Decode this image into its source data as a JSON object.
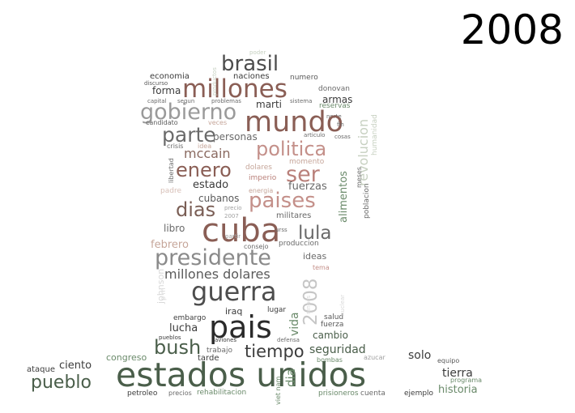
{
  "year_label": "2008",
  "colors": {
    "dark_green": "#4a5e4a",
    "rose": "#b9807a",
    "brown": "#8a5e55",
    "gray": "#8a8a8a",
    "dark": "#2a2a2a"
  },
  "words": [
    {
      "text": "poder",
      "c": "#c6d0c0"
    },
    {
      "text": "naciones",
      "c": "#3c3c3c"
    },
    {
      "text": "economia",
      "c": "#3c3c3c"
    },
    {
      "text": "numero",
      "c": "#5a5a5a"
    },
    {
      "text": "discurso",
      "c": "#5a5a5a"
    },
    {
      "text": "donovan",
      "c": "#6a6a6a"
    },
    {
      "text": "brasil",
      "c": "#4d4d4d"
    },
    {
      "text": "millones",
      "c": "#8a5e55"
    },
    {
      "text": "forma",
      "c": "#3c3c3c"
    },
    {
      "text": "capital",
      "c": "#6a6a6a"
    },
    {
      "text": "segun",
      "c": "#6a6a6a"
    },
    {
      "text": "problemas",
      "c": "#6a6a6a"
    },
    {
      "text": "sistema",
      "c": "#6a6a6a"
    },
    {
      "text": "reservas",
      "c": "#6a8a6a"
    },
    {
      "text": "armas",
      "c": "#3c3c3c"
    },
    {
      "text": "norte",
      "c": "#6a6a6a"
    },
    {
      "text": "gobierno",
      "c": "#9a9a9a"
    },
    {
      "text": "mundo",
      "c": "#8a5e55"
    },
    {
      "text": "marti",
      "c": "#3c3c3c"
    },
    {
      "text": "candidato",
      "c": "#5a5a5a"
    },
    {
      "text": "veces",
      "c": "#c6a69a"
    },
    {
      "text": "fin",
      "c": "#6a6a6a"
    },
    {
      "text": "parte",
      "c": "#6a6a6a"
    },
    {
      "text": "personas",
      "c": "#6a6a6a"
    },
    {
      "text": "articulo",
      "c": "#6a6a6a"
    },
    {
      "text": "cosas",
      "c": "#6a6a6a"
    },
    {
      "text": "crisis",
      "c": "#6a6a6a"
    },
    {
      "text": "idea",
      "c": "#c6a69a"
    },
    {
      "text": "politica",
      "c": "#c4908a"
    },
    {
      "text": "mccain",
      "c": "#8a6a60"
    },
    {
      "text": "momento",
      "c": "#c6a69a"
    },
    {
      "text": "dolares",
      "c": "#c6a69a"
    },
    {
      "text": "enero",
      "c": "#8a5e55"
    },
    {
      "text": "ser",
      "c": "#b9807a"
    },
    {
      "text": "imperio",
      "c": "#b9807a"
    },
    {
      "text": "estado",
      "c": "#3c3c3c"
    },
    {
      "text": "fuerzas",
      "c": "#6a6a6a"
    },
    {
      "text": "padre",
      "c": "#d8c0b8"
    },
    {
      "text": "energia",
      "c": "#c6a69a"
    },
    {
      "text": "cubanos",
      "c": "#5a5a5a"
    },
    {
      "text": "paises",
      "c": "#c4908a"
    },
    {
      "text": "dias",
      "c": "#7a5e55"
    },
    {
      "text": "precio",
      "c": "#a0a0a0"
    },
    {
      "text": "2007",
      "c": "#a0a0a0"
    },
    {
      "text": "militares",
      "c": "#6a6a6a"
    },
    {
      "text": "cuba",
      "c": "#8a5e55"
    },
    {
      "text": "lula",
      "c": "#6a6a6a"
    },
    {
      "text": "libro",
      "c": "#6a6a6a"
    },
    {
      "text": "partir",
      "c": "#a0a0a0"
    },
    {
      "text": "urss",
      "c": "#6a6a6a"
    },
    {
      "text": "febrero",
      "c": "#c6a69a"
    },
    {
      "text": "consejo",
      "c": "#6a6a6a"
    },
    {
      "text": "produccion",
      "c": "#6a6a6a"
    },
    {
      "text": "presidente",
      "c": "#8a8a8a"
    },
    {
      "text": "ideas",
      "c": "#6a6a6a"
    },
    {
      "text": "tema",
      "c": "#c4908a"
    },
    {
      "text": "millones dolares",
      "c": "#5a5a5a"
    },
    {
      "text": "guerra",
      "c": "#4d4d4d"
    },
    {
      "text": "embargo",
      "c": "#3c3c3c"
    },
    {
      "text": "iraq",
      "c": "#3c3c3c"
    },
    {
      "text": "lugar",
      "c": "#3c3c3c"
    },
    {
      "text": "salud",
      "c": "#5a5a5a"
    },
    {
      "text": "pais",
      "c": "#2a2a2a"
    },
    {
      "text": "fuerza",
      "c": "#5a5a5a"
    },
    {
      "text": "lucha",
      "c": "#3c3c3c"
    },
    {
      "text": "pueblos",
      "c": "#3c3c3c"
    },
    {
      "text": "aviones",
      "c": "#3c3c3c"
    },
    {
      "text": "cambio",
      "c": "#4a5e4a"
    },
    {
      "text": "bush",
      "c": "#4a5e4a"
    },
    {
      "text": "defensa",
      "c": "#6a6a6a"
    },
    {
      "text": "tiempo",
      "c": "#3c3c3c"
    },
    {
      "text": "seguridad",
      "c": "#4a5e4a"
    },
    {
      "text": "trabajo",
      "c": "#6a6a6a"
    },
    {
      "text": "congreso",
      "c": "#6a8a6a"
    },
    {
      "text": "ciento",
      "c": "#3c3c3c"
    },
    {
      "text": "tarde",
      "c": "#3c3c3c"
    },
    {
      "text": "bombas",
      "c": "#6a8a6a"
    },
    {
      "text": "azucar",
      "c": "#a0a0a0"
    },
    {
      "text": "solo",
      "c": "#3c3c3c"
    },
    {
      "text": "equipo",
      "c": "#5a5a5a"
    },
    {
      "text": "ataque",
      "c": "#3c3c3c"
    },
    {
      "text": "estados unidos",
      "c": "#4a5e4a"
    },
    {
      "text": "tierra",
      "c": "#3c3c3c"
    },
    {
      "text": "pueblo",
      "c": "#4a5e4a"
    },
    {
      "text": "programa",
      "c": "#6a8a6a"
    },
    {
      "text": "historia",
      "c": "#6a8a6a"
    },
    {
      "text": "petroleo",
      "c": "#3c3c3c"
    },
    {
      "text": "precios",
      "c": "#6a6a6a"
    },
    {
      "text": "rehabilitacion",
      "c": "#6a8a6a"
    },
    {
      "text": "prisioneros",
      "c": "#6a8a6a"
    },
    {
      "text": "cuenta",
      "c": "#6a6a6a"
    },
    {
      "text": "ejemplo",
      "c": "#3c3c3c"
    },
    {
      "text": "productos",
      "c": "#c6d0c0"
    },
    {
      "text": "revolucion",
      "c": "#c6d0c0"
    },
    {
      "text": "humanidad",
      "c": "#c6d0c0"
    },
    {
      "text": "meses",
      "c": "#6a6a6a"
    },
    {
      "text": "poblacion",
      "c": "#6a6a6a"
    },
    {
      "text": "alimentos",
      "c": "#6a8a6a"
    },
    {
      "text": "libertad",
      "c": "#6a6a6a"
    },
    {
      "text": "2008",
      "c": "#c6c6c6"
    },
    {
      "text": "johnson",
      "c": "#d8d8d8"
    },
    {
      "text": "p m",
      "c": "#d8d8d8"
    },
    {
      "text": "nuclear",
      "c": "#d8d8d8"
    },
    {
      "text": "ninnos",
      "c": "#d8d8d8"
    },
    {
      "text": "vida",
      "c": "#6a8a6a"
    },
    {
      "text": "dia",
      "c": "#6a8a6a"
    },
    {
      "text": "viet nam",
      "c": "#6a8a6a"
    }
  ]
}
